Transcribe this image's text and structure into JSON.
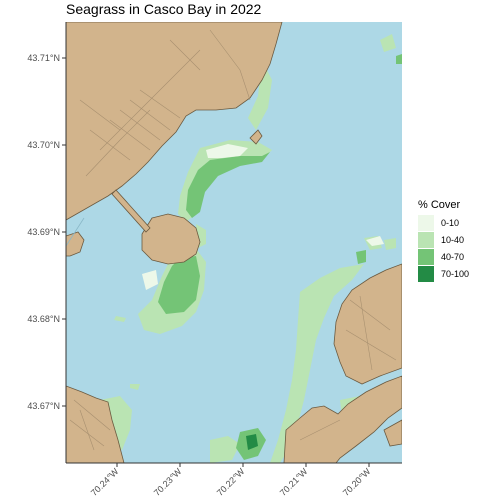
{
  "map": {
    "title": "Seagrass in Casco Bay in 2022",
    "latitude_ticks": [
      "43.71°N",
      "43.70°N",
      "43.69°N",
      "43.68°N",
      "43.67°N"
    ],
    "longitude_ticks": [
      "70.24°W",
      "70.23°W",
      "70.22°W",
      "70.21°W",
      "70.20°W"
    ],
    "colors": {
      "water": "#add8e6",
      "land": "#d2b48c",
      "land_border": "#6b5a40",
      "roads": "#a89070"
    }
  },
  "legend": {
    "title": "% Cover",
    "items": [
      {
        "label": "0-10",
        "color": "#edf8e9"
      },
      {
        "label": "10-40",
        "color": "#bae4b3"
      },
      {
        "label": "40-70",
        "color": "#74c476"
      },
      {
        "label": "70-100",
        "color": "#238b45"
      }
    ]
  }
}
